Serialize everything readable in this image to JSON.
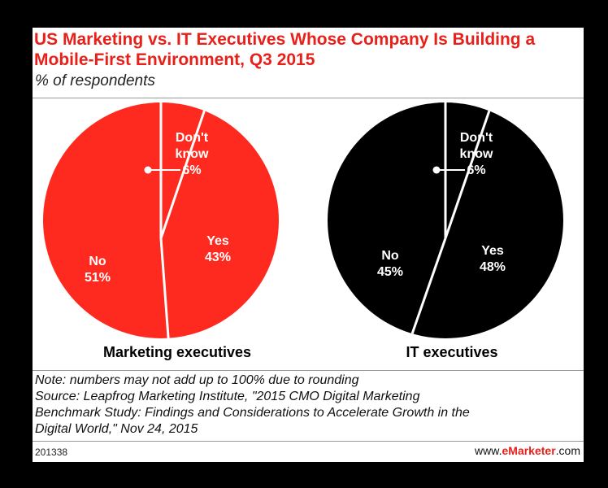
{
  "title": "US Marketing vs. IT Executives Whose Company Is Building a Mobile-First Environment, Q3 2015",
  "subtitle": "% of respondents",
  "chart_data": [
    {
      "type": "pie",
      "caption": "Marketing executives",
      "color": "#ff2a1f",
      "label_color": "#ffffff",
      "slices": [
        {
          "label": "Don't know",
          "value": 6
        },
        {
          "label": "Yes",
          "value": 43
        },
        {
          "label": "No",
          "value": 51
        }
      ]
    },
    {
      "type": "pie",
      "caption": "IT executives",
      "color": "#000000",
      "label_color": "#ffffff",
      "slices": [
        {
          "label": "Don't know",
          "value": 6
        },
        {
          "label": "Yes",
          "value": 48
        },
        {
          "label": "No",
          "value": 45
        }
      ]
    }
  ],
  "notes": {
    "note": "Note: numbers may not add up to 100% due to rounding",
    "source_lines": [
      "Source: Leapfrog Marketing Institute, \"2015 CMO Digital Marketing",
      "Benchmark Study: Findings and Considerations to Accelerate Growth in the",
      "Digital World,\" Nov 24, 2015"
    ]
  },
  "footer": {
    "id": "201338",
    "brand_prefix": "www.",
    "brand_bold": "eMarketer",
    "brand_suffix": ".com"
  }
}
